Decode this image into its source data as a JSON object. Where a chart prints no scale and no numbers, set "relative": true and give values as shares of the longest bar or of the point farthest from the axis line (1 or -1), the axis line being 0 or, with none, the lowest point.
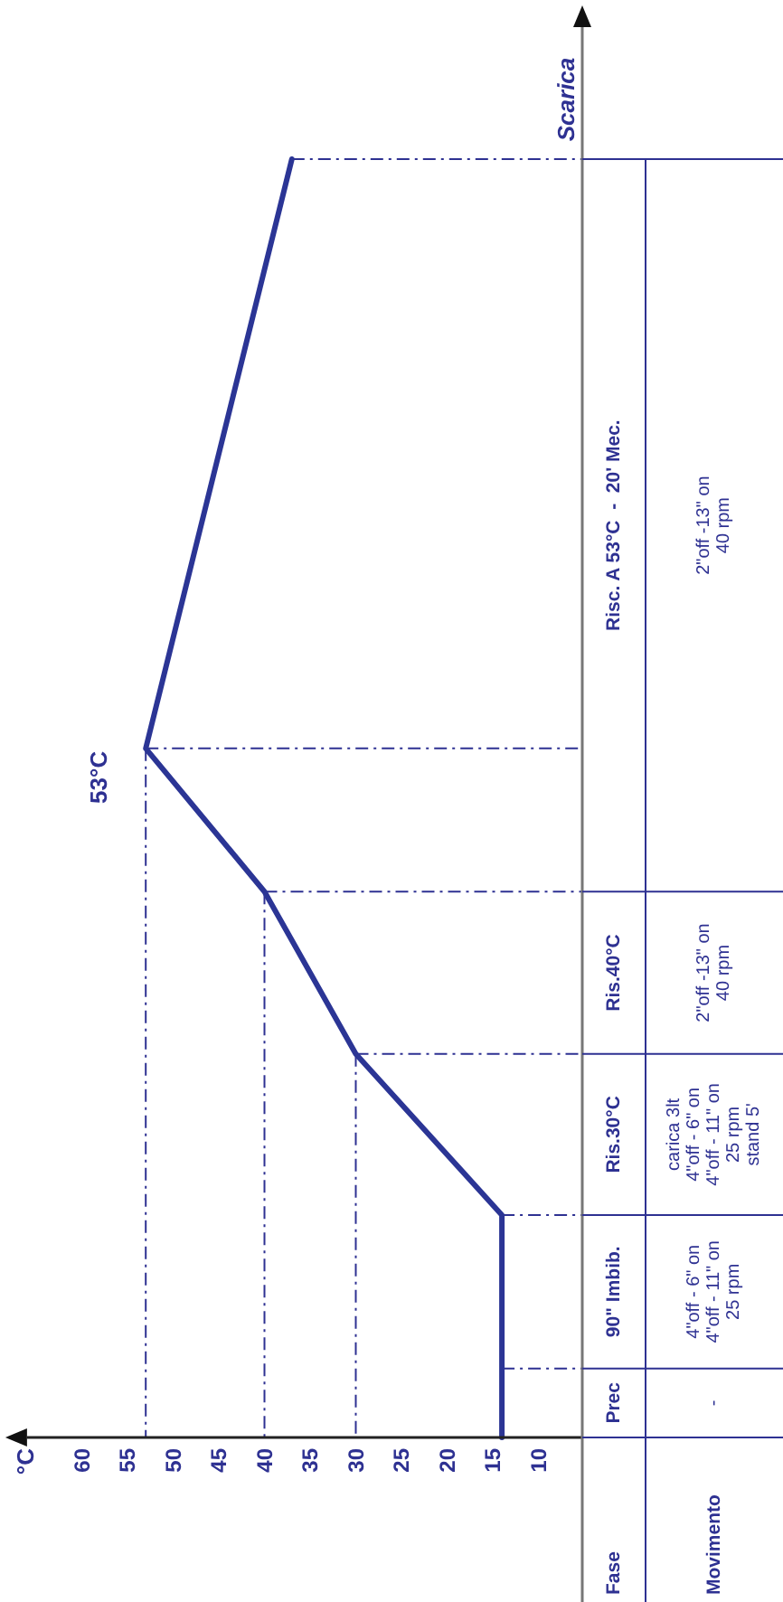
{
  "chart_data": {
    "type": "line",
    "ylabel": "Scarica",
    "relative": true,
    "x": [
      14,
      14,
      30,
      40,
      53,
      37
    ],
    "series": [
      {
        "color": "#2b3595",
        "values": [
          0,
          0.174,
          0.3,
          0.427,
          0.539,
          1.0
        ]
      }
    ],
    "xlim": [
      66,
      5
    ],
    "xticks": [
      60,
      55,
      50,
      45,
      40,
      35,
      30,
      25,
      20,
      15,
      10
    ],
    "tick_labels": "x",
    "ref_lines": [
      {
        "axis": "y",
        "value": 0.054,
        "line_style": "dashed"
      },
      {
        "axis": "y",
        "value": 0.174,
        "line_style": "dashed"
      },
      {
        "axis": "y",
        "value": 0.3,
        "line_style": "dashed"
      },
      {
        "axis": "y",
        "value": 0.427,
        "line_style": "dashed"
      },
      {
        "axis": "y",
        "value": 0.539,
        "line_style": "dashed"
      },
      {
        "axis": "y",
        "value": 1.0,
        "line_style": "dashed"
      },
      {
        "axis": "x",
        "value": 30,
        "line_style": "dashed"
      },
      {
        "axis": "x",
        "value": 40,
        "line_style": "dashed"
      },
      {
        "axis": "x",
        "value": 53,
        "line_style": "dashed"
      }
    ],
    "annotations": [
      "°C",
      "Fase",
      "Movimento",
      {
        "text": "53°C",
        "x": 53,
        "y": 0.539
      },
      "Prec",
      "90\" Imbib.",
      "Ris.30°C",
      "Ris.40°C",
      "Risc. A 53°C  -  20' Mec.",
      "-",
      "4\"off - 6\" on\n4\"off - 11\" on\n25 rpm",
      "carica 3lt\n4\"off - 6\" on\n4\"off - 11\" on\n25 rpm\nstand 5'",
      "2\"off -13\" on\n40 rpm",
      "2\"off -13\" on\n40 rpm"
    ]
  }
}
